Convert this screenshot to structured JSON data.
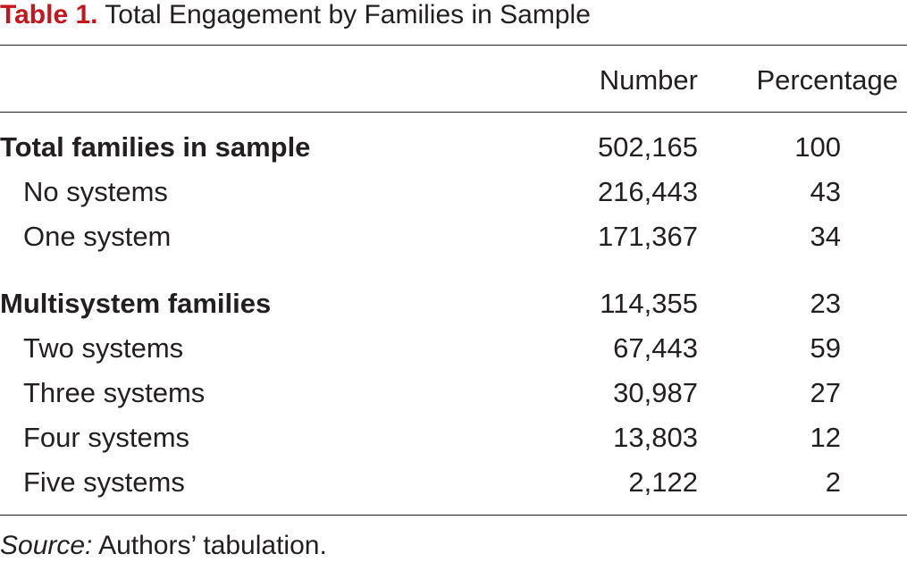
{
  "caption": {
    "label": "Table 1.",
    "title": "Total Engagement by Families in Sample"
  },
  "table": {
    "columns": [
      "Number",
      "Percentage"
    ],
    "rows": [
      {
        "name": "Total families in sample",
        "number": "502,165",
        "percentage": "100",
        "type": "group"
      },
      {
        "name": "No systems",
        "number": "216,443",
        "percentage": "43",
        "type": "sub"
      },
      {
        "name": "One system",
        "number": "171,367",
        "percentage": "34",
        "type": "sub"
      },
      {
        "name": "Multisystem families",
        "number": "114,355",
        "percentage": "23",
        "type": "group"
      },
      {
        "name": "Two systems",
        "number": "67,443",
        "percentage": "59",
        "type": "sub"
      },
      {
        "name": "Three systems",
        "number": "30,987",
        "percentage": "27",
        "type": "sub"
      },
      {
        "name": "Four systems",
        "number": "13,803",
        "percentage": "12",
        "type": "sub"
      },
      {
        "name": "Five systems",
        "number": "2,122",
        "percentage": "2",
        "type": "sub"
      }
    ]
  },
  "source": {
    "label": "Source:",
    "text": "Authors’ tabulation."
  },
  "colors": {
    "caption_label": "#c4161c",
    "text": "#231f20"
  }
}
